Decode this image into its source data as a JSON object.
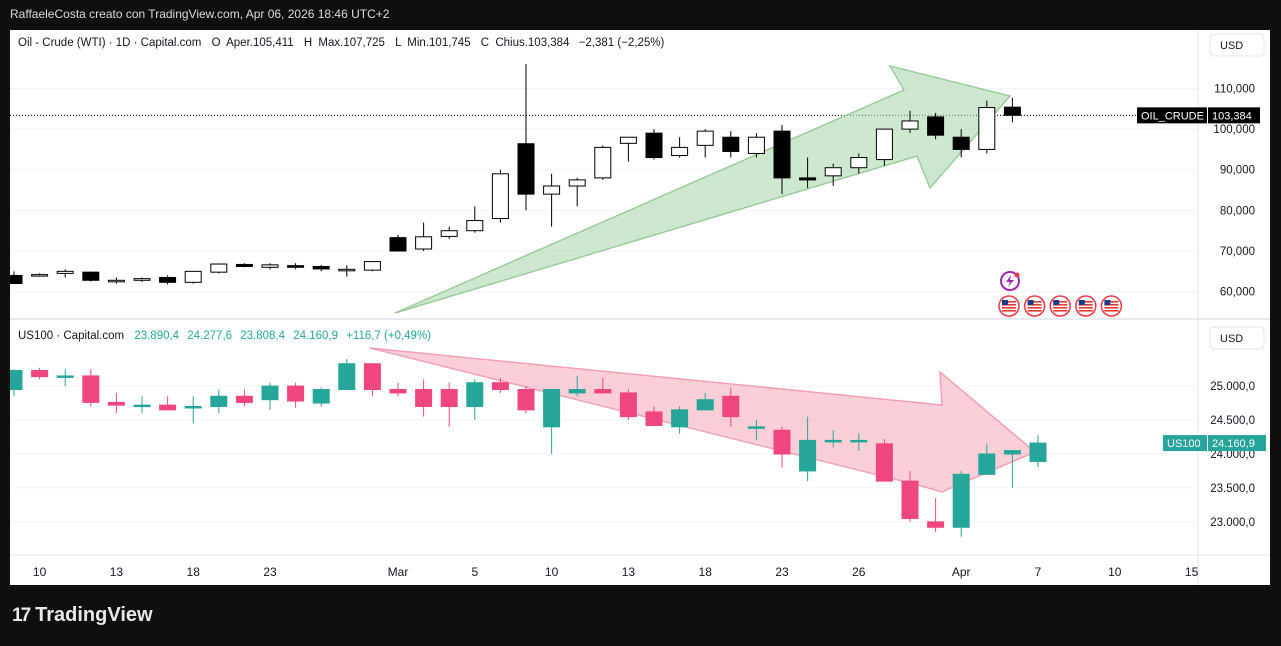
{
  "header": {
    "attribution": "RaffaeleCosta creato con TradingView.com, Apr 06, 2026 18:46 UTC+2"
  },
  "footer": {
    "brand": "TradingView",
    "logo_mark": "17"
  },
  "colors": {
    "bull_oil": "#ffffff",
    "bear_oil": "#000000",
    "bull_us100": "#26a69a",
    "bear_us100": "#f0467f",
    "arrow_green": "#a5d6a7",
    "arrow_red": "#f7a8b8",
    "grid": "#f0f3fa"
  },
  "chart_data": [
    {
      "type": "candlestick",
      "symbol": "OIL_CRUDE",
      "legend": {
        "name": "Oil - Crude (WTI) · 1D · Capital.com",
        "o_label": "O",
        "o_value": "Aper.105,411",
        "h_label": "H",
        "h_value": "Max.107,725",
        "l_label": "L",
        "l_value": "Min.101,745",
        "c_label": "C",
        "c_value": "Chius.103,384",
        "change": "−2,381 (−2,25%)"
      },
      "currency": "USD",
      "last_label": "OIL_CRUDE",
      "last_value": "103,384",
      "last": 103.384,
      "ylim": [
        55,
        117
      ],
      "yticks": [
        {
          "v": 110,
          "label": "110,000"
        },
        {
          "v": 100,
          "label": "100,000"
        },
        {
          "v": 90,
          "label": "90,000"
        },
        {
          "v": 80,
          "label": "80,000"
        },
        {
          "v": 70,
          "label": "70,000"
        },
        {
          "v": 60,
          "label": "60,000"
        }
      ],
      "candles": [
        [
          64,
          65,
          62.5,
          62
        ],
        [
          64,
          64.5,
          63.7,
          64.2
        ],
        [
          64.5,
          65.5,
          63.5,
          65
        ],
        [
          64.8,
          65,
          62.5,
          62.8
        ],
        [
          62.8,
          63.5,
          62,
          62.8
        ],
        [
          62.8,
          63.5,
          62.4,
          63.2
        ],
        [
          63.5,
          64,
          61.8,
          62.3
        ],
        [
          62.3,
          65,
          62,
          65
        ],
        [
          64.8,
          67,
          64.5,
          66.8
        ],
        [
          66.7,
          67,
          66,
          66.2
        ],
        [
          66,
          67,
          65.5,
          66.6
        ],
        [
          66.4,
          67,
          65.5,
          66
        ],
        [
          66.2,
          66.6,
          65,
          65.6
        ],
        [
          65.5,
          66.5,
          63.7,
          65.5
        ],
        [
          65.3,
          67.5,
          65,
          67.4
        ],
        [
          73.3,
          74,
          70,
          70
        ],
        [
          70.5,
          77,
          70,
          73.5
        ],
        [
          73.6,
          76,
          73,
          75
        ],
        [
          75,
          81,
          74.5,
          77.5
        ],
        [
          78,
          90,
          77,
          89
        ],
        [
          96.4,
          116,
          80,
          84
        ],
        [
          84,
          89,
          76,
          86
        ],
        [
          86,
          88,
          81,
          87.5
        ],
        [
          88,
          96,
          87.5,
          95.5
        ],
        [
          96.5,
          98,
          92,
          98
        ],
        [
          99,
          100,
          92.5,
          93
        ],
        [
          93.5,
          98,
          93,
          95.5
        ],
        [
          96,
          100,
          93,
          99.5
        ],
        [
          98,
          99.5,
          93,
          94.5
        ],
        [
          94,
          99,
          93,
          98
        ],
        [
          99.5,
          101,
          84,
          88
        ],
        [
          88,
          93,
          85.5,
          87.5
        ],
        [
          88.5,
          91.5,
          86,
          90.5
        ],
        [
          90.5,
          94,
          89,
          93
        ],
        [
          92.5,
          100,
          91,
          100
        ],
        [
          100,
          104.5,
          99,
          102
        ],
        [
          103,
          104,
          97.5,
          98.5
        ],
        [
          98,
          100,
          93,
          95
        ],
        [
          95,
          107,
          94,
          105.3
        ],
        [
          105.4,
          107.7,
          101.7,
          103.4
        ]
      ]
    },
    {
      "type": "candlestick",
      "symbol": "US100",
      "legend": {
        "name": "US100 · Capital.com",
        "o_value": "23.890,4",
        "h_value": "24.277,6",
        "l_value": "23.808,4",
        "c_value": "24.160,9",
        "change": "+116,7 (+0,49%)"
      },
      "currency": "USD",
      "last_label": "US100",
      "last_value": "24.160,9",
      "last": 24160.9,
      "ylim": [
        22600,
        25650
      ],
      "yticks": [
        {
          "v": 25000,
          "label": "25.000,0"
        },
        {
          "v": 24500,
          "label": "24.500,0"
        },
        {
          "v": 24000,
          "label": "24.000,0"
        },
        {
          "v": 23500,
          "label": "23.500,0"
        },
        {
          "v": 23000,
          "label": "23.000,0"
        }
      ],
      "candles": [
        [
          24950,
          25250,
          24850,
          25230
        ],
        [
          25230,
          25270,
          25100,
          25140
        ],
        [
          25130,
          25250,
          25000,
          25150
        ],
        [
          25150,
          25250,
          24700,
          24760
        ],
        [
          24760,
          24900,
          24600,
          24720
        ],
        [
          24700,
          24850,
          24600,
          24720
        ],
        [
          24720,
          24850,
          24650,
          24650
        ],
        [
          24700,
          24850,
          24450,
          24700
        ],
        [
          24700,
          24950,
          24600,
          24850
        ],
        [
          24850,
          24950,
          24700,
          24760
        ],
        [
          24800,
          25050,
          24650,
          25000
        ],
        [
          25000,
          25050,
          24680,
          24780
        ],
        [
          24750,
          24980,
          24700,
          24950
        ],
        [
          24950,
          25400,
          24950,
          25330
        ],
        [
          25330,
          25330,
          24850,
          24950
        ],
        [
          24950,
          25050,
          24850,
          24900
        ],
        [
          24950,
          25100,
          24550,
          24700
        ],
        [
          24950,
          25050,
          24400,
          24700
        ],
        [
          24700,
          25100,
          24500,
          25050
        ],
        [
          25050,
          25120,
          24900,
          24950
        ],
        [
          24950,
          25000,
          24600,
          24650
        ],
        [
          24400,
          24950,
          24000,
          24950
        ],
        [
          24900,
          25150,
          24850,
          24950
        ],
        [
          24950,
          25120,
          24900,
          24900
        ],
        [
          24900,
          24950,
          24500,
          24550
        ],
        [
          24620,
          24700,
          24450,
          24420
        ],
        [
          24400,
          24700,
          24300,
          24650
        ],
        [
          24650,
          24900,
          24650,
          24800
        ],
        [
          24850,
          24980,
          24400,
          24550
        ],
        [
          24400,
          24500,
          24200,
          24400
        ],
        [
          24350,
          24400,
          23800,
          24000
        ],
        [
          23750,
          24550,
          23600,
          24200
        ],
        [
          24200,
          24350,
          24100,
          24200
        ],
        [
          24200,
          24300,
          24050,
          24200
        ],
        [
          24150,
          24220,
          23600,
          23600
        ],
        [
          23600,
          23750,
          23000,
          23050
        ],
        [
          23000,
          23350,
          22850,
          22920
        ],
        [
          22920,
          23750,
          22780,
          23700
        ],
        [
          23700,
          24150,
          23700,
          24000
        ],
        [
          24000,
          24050,
          23500,
          24050
        ],
        [
          23890,
          24277,
          23808,
          24161
        ]
      ]
    }
  ],
  "x_axis": {
    "ticks": [
      {
        "idx": 1,
        "label": "10"
      },
      {
        "idx": 4,
        "label": "13"
      },
      {
        "idx": 7,
        "label": "18"
      },
      {
        "idx": 10,
        "label": "23"
      },
      {
        "idx": 15,
        "label": "Mar"
      },
      {
        "idx": 18,
        "label": "5"
      },
      {
        "idx": 21,
        "label": "10"
      },
      {
        "idx": 24,
        "label": "13"
      },
      {
        "idx": 27,
        "label": "18"
      },
      {
        "idx": 30,
        "label": "23"
      },
      {
        "idx": 33,
        "label": "26"
      },
      {
        "idx": 37,
        "label": "Apr"
      },
      {
        "idx": 40,
        "label": "7"
      },
      {
        "idx": 43,
        "label": "10"
      },
      {
        "idx": 46,
        "label": "15"
      }
    ]
  },
  "badges": {
    "flash_icon": "lightning-icon",
    "flag_icon": "us-flag-icon",
    "flag_count": 5
  }
}
